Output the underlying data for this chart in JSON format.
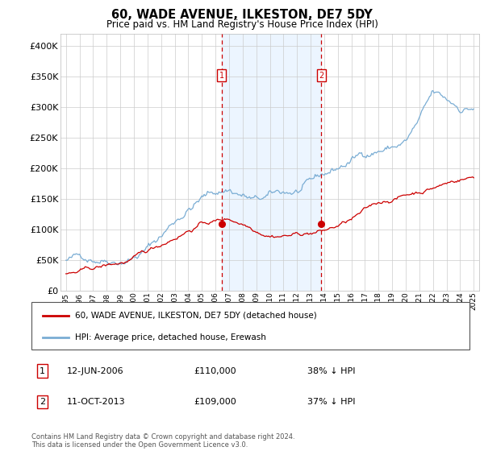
{
  "title": "60, WADE AVENUE, ILKESTON, DE7 5DY",
  "subtitle": "Price paid vs. HM Land Registry's House Price Index (HPI)",
  "hpi_color": "#7aadd4",
  "price_color": "#cc0000",
  "bg_color": "#ddeeff",
  "grid_color": "#cccccc",
  "ylim": [
    0,
    420000
  ],
  "yticks": [
    0,
    50000,
    100000,
    150000,
    200000,
    250000,
    300000,
    350000,
    400000
  ],
  "ytick_labels": [
    "£0",
    "£50K",
    "£100K",
    "£150K",
    "£200K",
    "£250K",
    "£300K",
    "£350K",
    "£400K"
  ],
  "transaction1": {
    "date": "12-JUN-2006",
    "price": 110000,
    "pct": "38%",
    "label": "1",
    "x": 2006.45
  },
  "transaction2": {
    "date": "11-OCT-2013",
    "price": 109000,
    "pct": "37%",
    "label": "2",
    "x": 2013.79
  },
  "legend_property": "60, WADE AVENUE, ILKESTON, DE7 5DY (detached house)",
  "legend_hpi": "HPI: Average price, detached house, Erewash",
  "footer": "Contains HM Land Registry data © Crown copyright and database right 2024.\nThis data is licensed under the Open Government Licence v3.0."
}
